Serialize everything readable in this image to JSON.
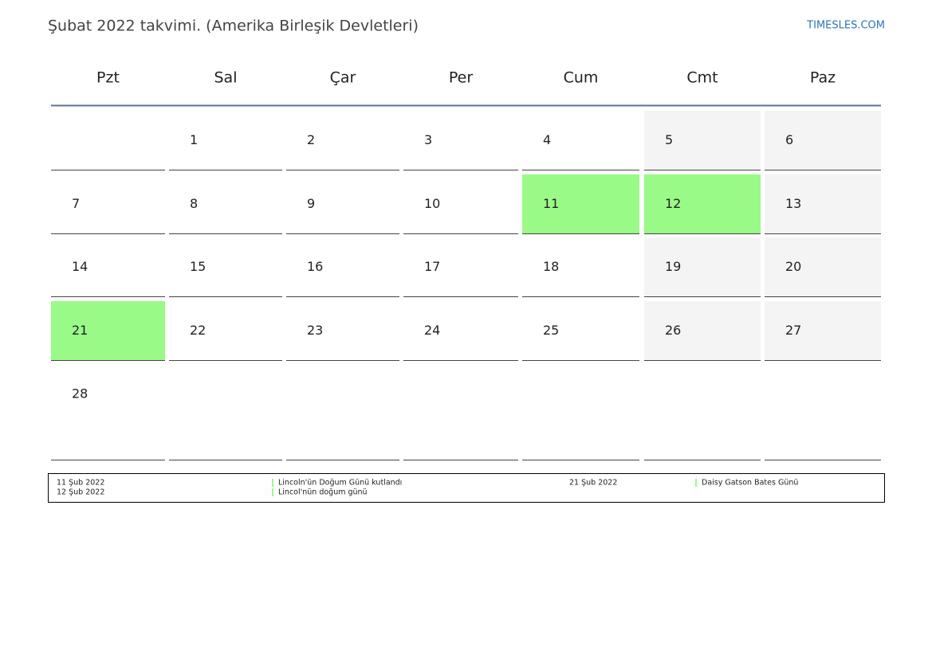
{
  "header": {
    "title": "Şubat 2022 takvimi. (Amerika Birleşik Devletleri)",
    "brand": "TIMESLES.COM"
  },
  "calendar": {
    "holiday_color": "#99fa88",
    "weekend_color": "#f4f4f4",
    "weekdays": [
      {
        "label": "Pzt"
      },
      {
        "label": "Sal"
      },
      {
        "label": "Çar"
      },
      {
        "label": "Per"
      },
      {
        "label": "Cum"
      },
      {
        "label": "Cmt",
        "weekend": true
      },
      {
        "label": "Paz",
        "weekend": true
      }
    ],
    "weeks": [
      [
        null,
        {
          "day": 1
        },
        {
          "day": 2
        },
        {
          "day": 3
        },
        {
          "day": 4
        },
        {
          "day": 5
        },
        {
          "day": 6
        }
      ],
      [
        {
          "day": 7
        },
        {
          "day": 8
        },
        {
          "day": 9
        },
        {
          "day": 10
        },
        {
          "day": 11,
          "holiday": true
        },
        {
          "day": 12,
          "holiday": true
        },
        {
          "day": 13
        }
      ],
      [
        {
          "day": 14
        },
        {
          "day": 15
        },
        {
          "day": 16
        },
        {
          "day": 17
        },
        {
          "day": 18
        },
        {
          "day": 19
        },
        {
          "day": 20
        }
      ],
      [
        {
          "day": 21,
          "holiday": true
        },
        {
          "day": 22
        },
        {
          "day": 23
        },
        {
          "day": 24
        },
        {
          "day": 25
        },
        {
          "day": 26
        },
        {
          "day": 27
        }
      ],
      [
        {
          "day": 28
        },
        null,
        null,
        null,
        null,
        null,
        null
      ]
    ]
  },
  "legend": {
    "events": [
      {
        "date": "11 Şub 2022",
        "name": "Lincoln'ün Doğum Günü kutlandı"
      },
      {
        "date": "12 Şub 2022",
        "name": "Lincol'nün doğum günü"
      },
      {
        "date": "21 Şub 2022",
        "name": "Daisy Gatson Bates Günü"
      }
    ]
  }
}
